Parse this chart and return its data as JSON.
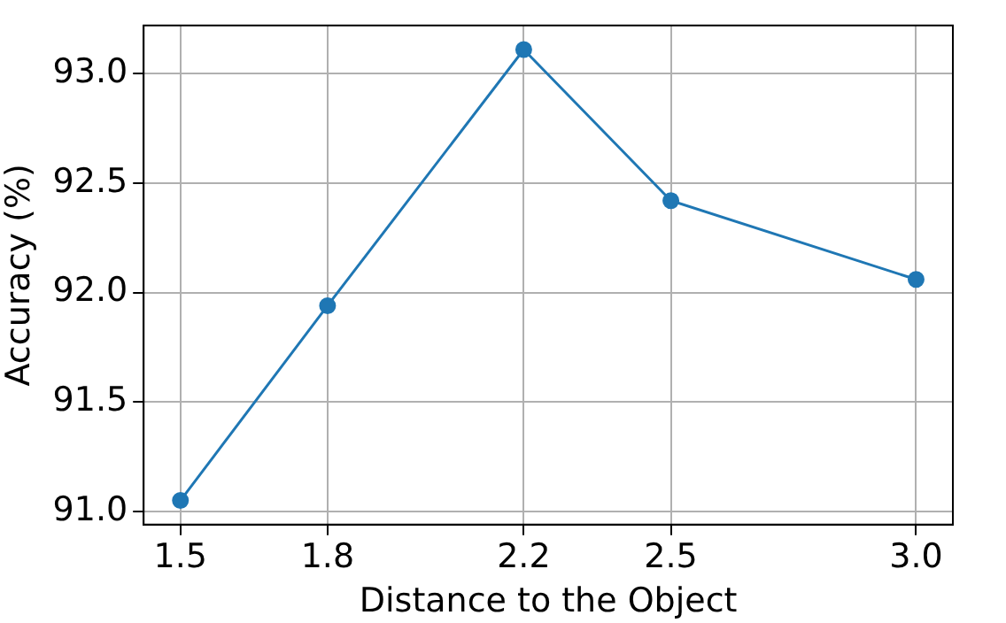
{
  "chart_data": {
    "type": "line",
    "xlabel": "Distance to the Object",
    "ylabel": "Accuracy (%)",
    "x": [
      1.5,
      1.8,
      2.2,
      2.5,
      3.0
    ],
    "series": [
      {
        "color": "#1f77b4",
        "values": [
          91.05,
          91.94,
          93.11,
          92.42,
          92.06
        ]
      }
    ],
    "xlim": [
      1.425,
      3.075
    ],
    "xticks": [
      {
        "value": 1.5,
        "label": "1.5"
      },
      {
        "value": 1.8,
        "label": "1.8"
      },
      {
        "value": 2.2,
        "label": "2.2"
      },
      {
        "value": 2.5,
        "label": "2.5"
      },
      {
        "value": 3.0,
        "label": "3.0"
      }
    ],
    "ylim": [
      90.94,
      93.22
    ],
    "yticks": [
      {
        "value": 91.0,
        "label": "91.0"
      },
      {
        "value": 91.5,
        "label": "91.5"
      },
      {
        "value": 92.0,
        "label": "92.0"
      },
      {
        "value": 92.5,
        "label": "92.5"
      },
      {
        "value": 93.0,
        "label": "93.0"
      }
    ],
    "grid": true,
    "marker": "circle",
    "line_style": "solid",
    "legend": false
  }
}
